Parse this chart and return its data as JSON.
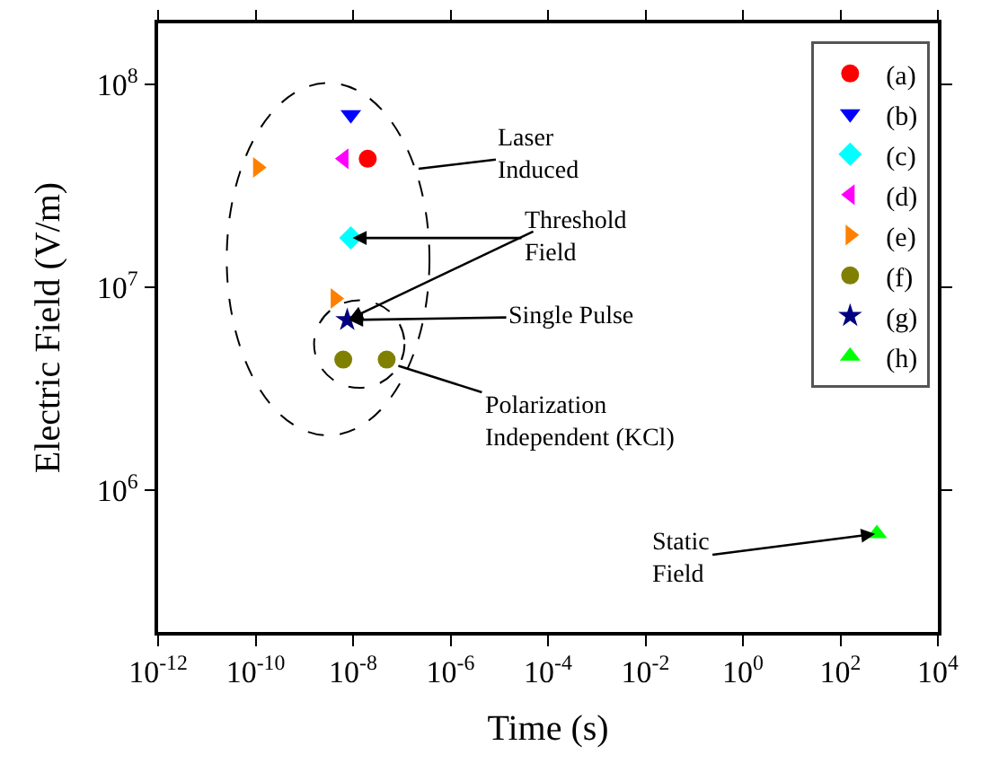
{
  "chart_data": {
    "type": "scatter",
    "xlabel": "Time (s)",
    "ylabel": "Electric Field (V/m)",
    "log": "xy",
    "xlim": [
      1e-12,
      10000.0
    ],
    "ylim": [
      200000.0,
      200000000.0
    ],
    "xticks": [
      {
        "value": 1e-12,
        "label": "10$^{-12}$"
      },
      {
        "value": 1e-10,
        "label": "10$^{-10}$"
      },
      {
        "value": 1e-08,
        "label": "10$^{-8}$"
      },
      {
        "value": 1e-06,
        "label": "10$^{-6}$"
      },
      {
        "value": 0.0001,
        "label": "10$^{-4}$"
      },
      {
        "value": 0.01,
        "label": "10$^{-2}$"
      },
      {
        "value": 1,
        "label": "10$^{0}$"
      },
      {
        "value": 100,
        "label": "10$^{2}$"
      },
      {
        "value": 10000,
        "label": "10$^{4}$"
      }
    ],
    "yticks": [
      {
        "value": 1000000.0,
        "label": "10$^{6}$"
      },
      {
        "value": 10000000.0,
        "label": "10$^{7}$"
      },
      {
        "value": 100000000.0,
        "label": "10$^{8}$"
      }
    ],
    "legend": "top right",
    "series": [
      {
        "name": "(a)",
        "color": "#ff0000",
        "marker": "circle",
        "x": [
          2e-08
        ],
        "values": [
          43000000.0
        ]
      },
      {
        "name": "(b)",
        "color": "#0000ff",
        "marker": "triangle-down",
        "x": [
          9e-09
        ],
        "values": [
          71000000.0
        ]
      },
      {
        "name": "(c)",
        "color": "#00ffff",
        "marker": "diamond",
        "x": [
          9e-09
        ],
        "values": [
          17500000.0
        ]
      },
      {
        "name": "(d)",
        "color": "#ff00ff",
        "marker": "triangle-left",
        "x": [
          6.5e-09
        ],
        "values": [
          43000000.0
        ]
      },
      {
        "name": "(e)",
        "color": "#ff8000",
        "marker": "triangle-right",
        "x": [
          1.1e-10,
          4.3e-09
        ],
        "values": [
          39000000.0,
          8800000.0
        ]
      },
      {
        "name": "(f)",
        "color": "#808000",
        "marker": "circle",
        "x": [
          6.3e-09,
          4.9e-08
        ],
        "values": [
          4400000.0,
          4400000.0
        ]
      },
      {
        "name": "(g)",
        "color": "#000080",
        "marker": "star",
        "x": [
          7.6e-09
        ],
        "values": [
          6900000.0
        ]
      },
      {
        "name": "(h)",
        "color": "#00ff00",
        "marker": "triangle-up",
        "x": [
          560
        ],
        "values": [
          610000.0
        ]
      }
    ],
    "annotations": [
      "Laser\nInduced",
      {
        "text": "Threshold\nField",
        "x": 9e-09,
        "y": 17500000.0
      },
      {
        "text": "Single Pulse",
        "x": 7.6e-09,
        "y": 6900000.0
      },
      {
        "text": "Polarization\nIndependent (KCl)",
        "x": 8.5e-08,
        "y": 4100000.0
      },
      {
        "text": "Static\nField",
        "x": 560,
        "y": 610000.0
      }
    ]
  }
}
